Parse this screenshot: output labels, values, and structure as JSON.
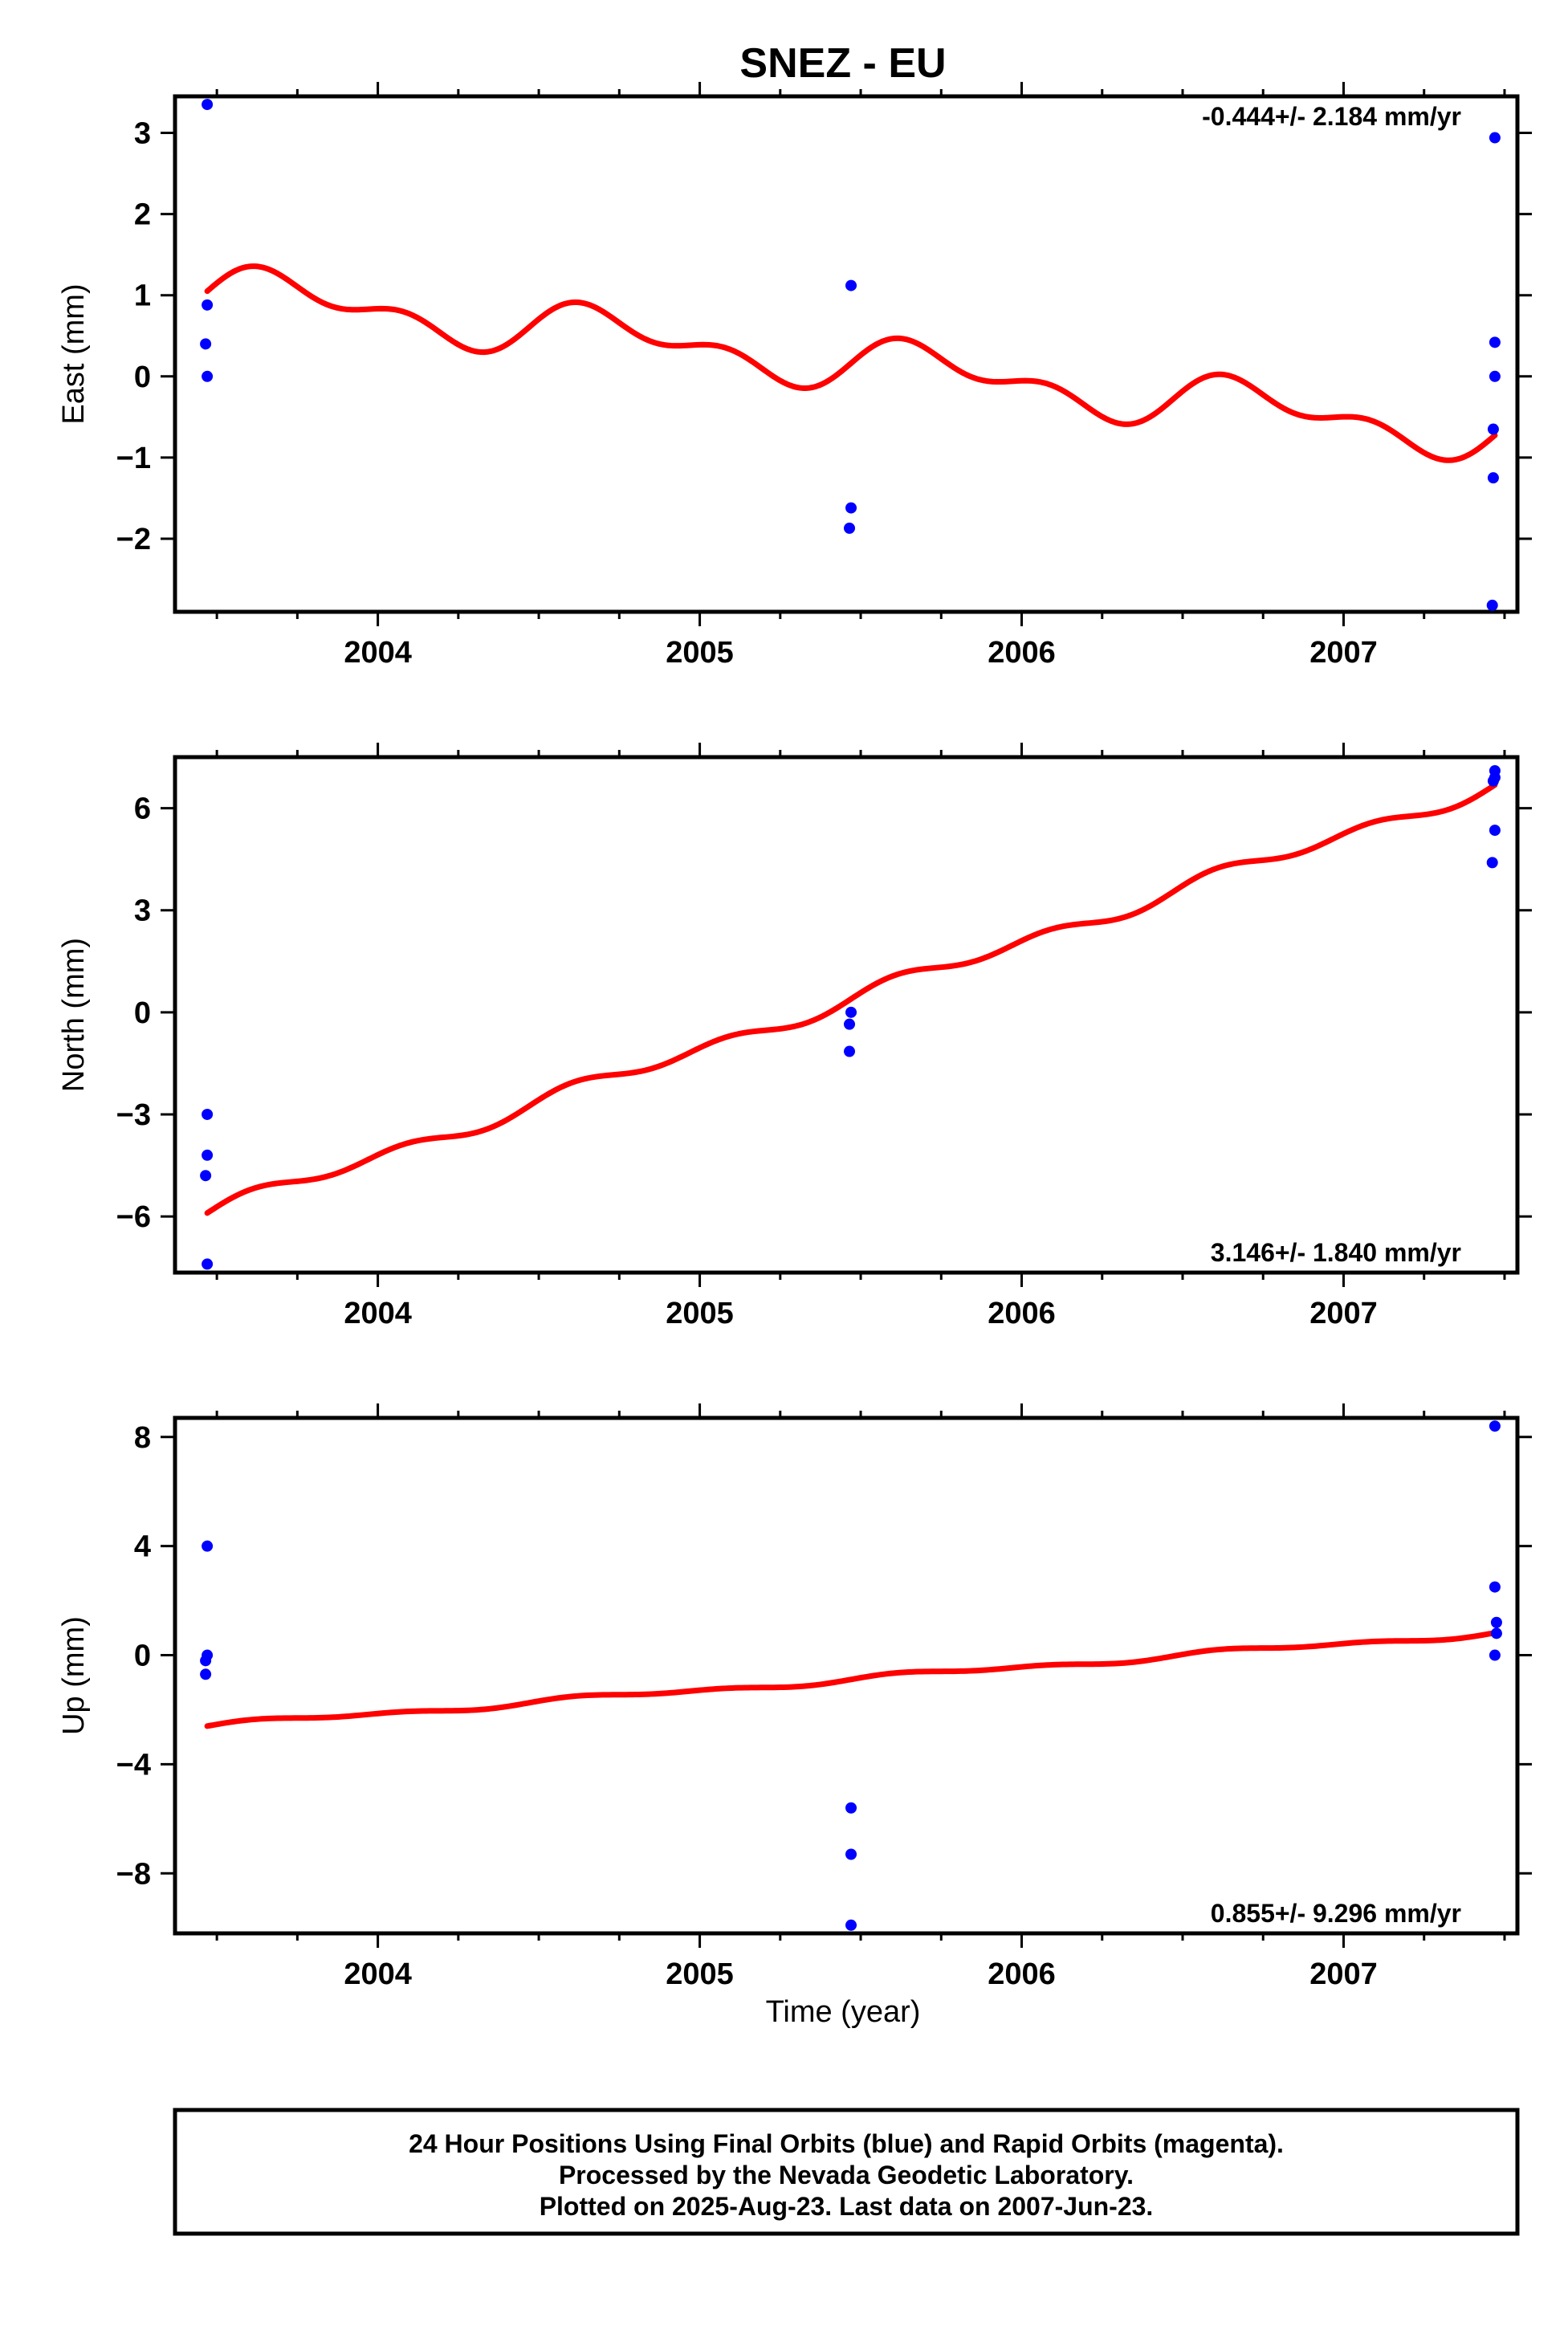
{
  "title": "SNEZ - EU",
  "x_axis_label": "Time (year)",
  "footer": {
    "line1": "24 Hour Positions Using Final Orbits (blue) and Rapid Orbits (magenta).",
    "line2": "Processed by the Nevada Geodetic Laboratory.",
    "line3": "Plotted on 2025-Aug-23. Last data on 2007-Jun-23."
  },
  "colors": {
    "points": "#0000ff",
    "model": "#ff0000",
    "axis": "#000000"
  },
  "chart_data": [
    {
      "type": "scatter",
      "ylabel": "East (mm)",
      "rate_label": "-0.444+/- 2.184 mm/yr",
      "rate_position": "top-right",
      "xlim": [
        2003.37,
        2007.54
      ],
      "ylim": [
        -2.9,
        3.45
      ],
      "yticks": [
        3,
        2,
        1,
        0,
        -1,
        -2
      ],
      "ytick_labels": [
        "3",
        "2",
        "1",
        "0",
        "−1",
        "−2"
      ],
      "xticks": [
        2004,
        2005,
        2006,
        2007
      ],
      "xtick_labels": [
        "2004",
        "2005",
        "2006",
        "2007"
      ],
      "points": [
        [
          2003.47,
          3.35
        ],
        [
          2003.47,
          0.88
        ],
        [
          2003.465,
          0.4
        ],
        [
          2003.47,
          0.0
        ],
        [
          2005.47,
          1.12
        ],
        [
          2005.47,
          -1.62
        ],
        [
          2005.465,
          -1.87
        ],
        [
          2007.47,
          2.94
        ],
        [
          2007.47,
          0.42
        ],
        [
          2007.47,
          0.0
        ],
        [
          2007.465,
          -0.65
        ],
        [
          2007.465,
          -1.25
        ],
        [
          2007.462,
          -2.82
        ]
      ],
      "model": {
        "name": "model fit",
        "trend": [
          1.05,
          -0.444
        ],
        "annual_amplitude": 0.25,
        "semiannual_amplitude": 0.18,
        "x_start": 2003.47,
        "x_end": 2007.47
      }
    },
    {
      "type": "scatter",
      "ylabel": "North (mm)",
      "rate_label": "3.146+/- 1.840 mm/yr",
      "rate_position": "bottom-right",
      "xlim": [
        2003.37,
        2007.54
      ],
      "ylim": [
        -7.65,
        7.5
      ],
      "yticks": [
        6,
        3,
        0,
        -3,
        -6
      ],
      "ytick_labels": [
        "6",
        "3",
        "0",
        "−3",
        "−6"
      ],
      "xticks": [
        2004,
        2005,
        2006,
        2007
      ],
      "xtick_labels": [
        "2004",
        "2005",
        "2006",
        "2007"
      ],
      "points": [
        [
          2003.47,
          -3.0
        ],
        [
          2003.47,
          -4.2
        ],
        [
          2003.465,
          -4.8
        ],
        [
          2003.47,
          -7.4
        ],
        [
          2005.47,
          0.0
        ],
        [
          2005.465,
          -0.35
        ],
        [
          2005.465,
          -1.15
        ],
        [
          2007.47,
          7.1
        ],
        [
          2007.47,
          6.9
        ],
        [
          2007.465,
          6.8
        ],
        [
          2007.47,
          5.35
        ],
        [
          2007.462,
          4.4
        ]
      ],
      "model": {
        "name": "model fit",
        "trend": [
          -5.9,
          3.146
        ],
        "annual_amplitude": 0.12,
        "semiannual_amplitude": 0.18,
        "x_start": 2003.47,
        "x_end": 2007.47
      }
    },
    {
      "type": "scatter",
      "ylabel": "Up (mm)",
      "rate_label": "0.855+/- 9.296 mm/yr",
      "rate_position": "bottom-right",
      "xlim": [
        2003.37,
        2007.54
      ],
      "ylim": [
        -10.2,
        8.7
      ],
      "yticks": [
        8,
        4,
        0,
        -4,
        -8
      ],
      "ytick_labels": [
        "8",
        "4",
        "0",
        "−4",
        "−8"
      ],
      "xticks": [
        2004,
        2005,
        2006,
        2007
      ],
      "xtick_labels": [
        "2004",
        "2005",
        "2006",
        "2007"
      ],
      "points": [
        [
          2003.47,
          4.0
        ],
        [
          2003.47,
          0.0
        ],
        [
          2003.465,
          -0.2
        ],
        [
          2003.465,
          -0.7
        ],
        [
          2005.47,
          -5.6
        ],
        [
          2005.47,
          -7.3
        ],
        [
          2005.47,
          -9.9
        ],
        [
          2007.47,
          8.4
        ],
        [
          2007.47,
          2.5
        ],
        [
          2007.475,
          1.2
        ],
        [
          2007.475,
          0.8
        ],
        [
          2007.47,
          0.0
        ]
      ],
      "model": {
        "name": "model fit",
        "trend": [
          -2.6,
          0.855
        ],
        "annual_amplitude": 0.08,
        "semiannual_amplitude": 0.06,
        "x_start": 2003.47,
        "x_end": 2007.47
      }
    }
  ]
}
